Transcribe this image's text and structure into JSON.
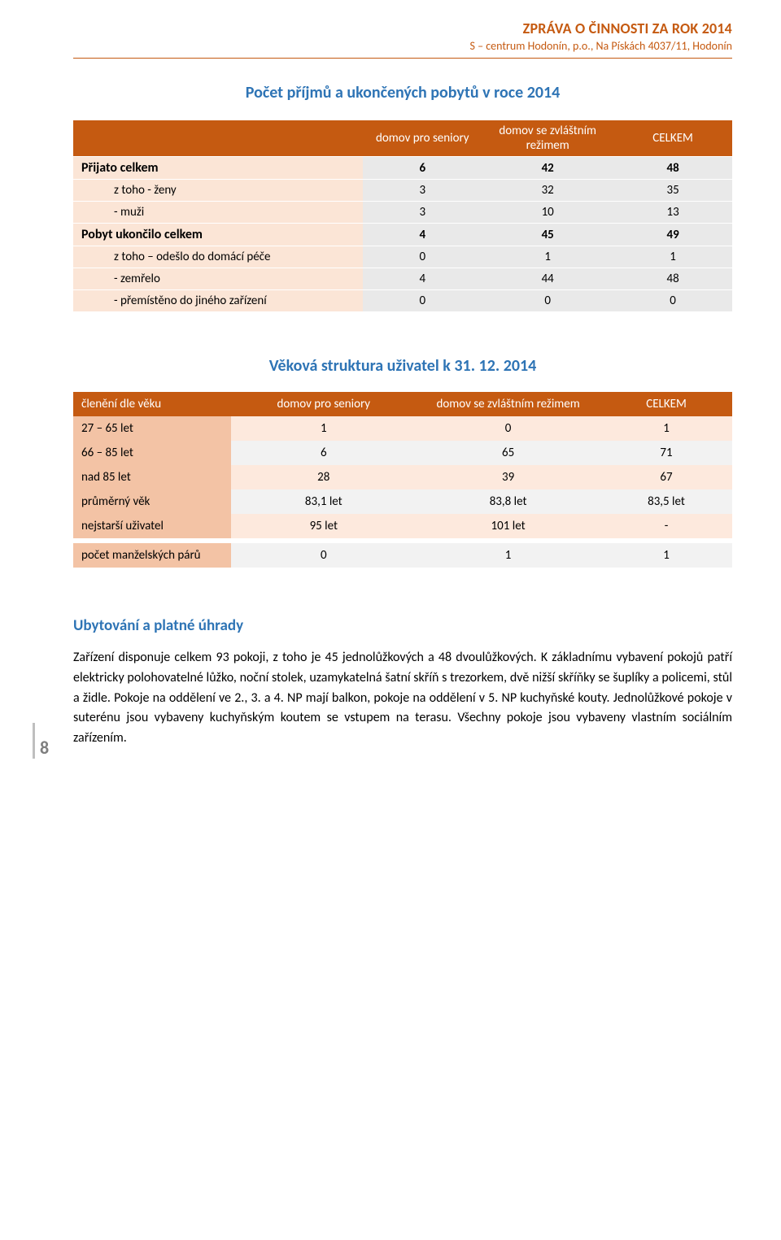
{
  "header": {
    "title": "ZPRÁVA O ČINNOSTI ZA ROK 2014",
    "sub": "S – centrum Hodonín, p.o., Na Pískách 4037/11, Hodonín"
  },
  "table1": {
    "title": "Počet příjmů a ukončených pobytů v roce 2014",
    "cols": [
      "",
      "domov pro seniory",
      "domov se zvláštním režimem",
      "CELKEM"
    ],
    "rows": [
      {
        "label": "Přijato celkem",
        "bold": true,
        "vals": [
          "6",
          "42",
          "48"
        ]
      },
      {
        "label": "z toho  - ženy",
        "sub": true,
        "vals": [
          "3",
          "32",
          "35"
        ]
      },
      {
        "label": "- muži",
        "sub": true,
        "vals": [
          "3",
          "10",
          "13"
        ]
      },
      {
        "label": "Pobyt ukončilo celkem",
        "bold": true,
        "vals": [
          "4",
          "45",
          "49"
        ]
      },
      {
        "label": "z toho – odešlo do domácí péče",
        "sub": true,
        "vals": [
          "0",
          "1",
          "1"
        ]
      },
      {
        "label": "- zemřelo",
        "sub": true,
        "vals": [
          "4",
          "44",
          "48"
        ]
      },
      {
        "label": "- přemístěno do jiného zařízení",
        "sub": true,
        "vals": [
          "0",
          "0",
          "0"
        ]
      }
    ]
  },
  "table2": {
    "title": "Věková struktura uživatel k 31. 12. 2014",
    "cols": [
      "členění dle věku",
      "domov pro seniory",
      "domov se zvláštním režimem",
      "CELKEM"
    ],
    "rows": [
      {
        "label": "27 – 65 let",
        "vals": [
          "1",
          "0",
          "1"
        ]
      },
      {
        "label": "66 – 85 let",
        "vals": [
          "6",
          "65",
          "71"
        ]
      },
      {
        "label": "nad 85 let",
        "vals": [
          "28",
          "39",
          "67"
        ]
      },
      {
        "label": "průměrný věk",
        "vals": [
          "83,1 let",
          "83,8 let",
          "83,5 let"
        ]
      },
      {
        "label": "nejstarší uživatel",
        "vals": [
          "95 let",
          "101 let",
          "-"
        ]
      },
      {
        "label": "počet manželských párů",
        "vals": [
          "0",
          "1",
          "1"
        ]
      }
    ]
  },
  "body": {
    "heading": "Ubytování a platné úhrady",
    "text": "Zařízení disponuje celkem 93 pokoji, z toho je 45 jednolůžkových a 48 dvoulůžkových. K základnímu vybavení pokojů patří elektricky polohovatelné lůžko, noční stolek, uzamykatelná šatní skříň s trezorkem, dvě nižší skříňky se šuplíky a policemi, stůl a židle. Pokoje na oddělení ve 2., 3. a 4. NP mají balkon, pokoje na oddělení v 5. NP kuchyňské kouty. Jednolůžkové pokoje v suterénu jsou vybaveny kuchyňským koutem se vstupem na terasu. Všechny pokoje jsou vybaveny vlastním sociálním zařízením."
  },
  "page": "8",
  "style": {
    "accent": "#c55a11",
    "heading_color": "#2e74b5",
    "t1_rowhead_bg": "#fbe5d6",
    "t1_num_bg": "#e9e9e9",
    "t2_rowhead_bg": "#f3c3a5",
    "t2_odd_bg": "#fde9dd",
    "t2_even_bg": "#f2f2f2"
  }
}
